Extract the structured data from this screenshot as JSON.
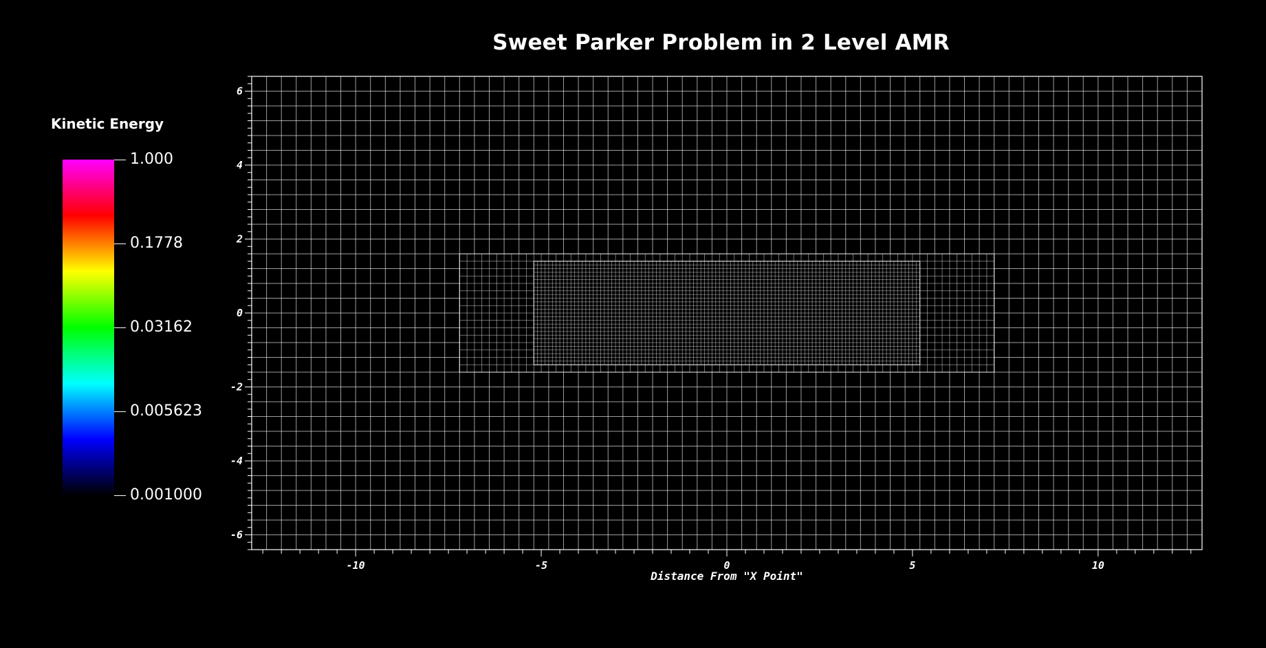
{
  "chart_data": {
    "type": "mesh",
    "title": "Sweet Parker Problem in 2 Level AMR",
    "xlabel": "Distance From \"X Point\"",
    "ylabel": "",
    "xlim": [
      -12.8,
      12.8
    ],
    "ylim": [
      -6.4,
      6.4
    ],
    "x_ticks": [
      -10,
      -5,
      0,
      5,
      10
    ],
    "y_ticks": [
      -6,
      -4,
      -2,
      0,
      2,
      4,
      6
    ],
    "x_tick_labels": [
      "-10",
      "-5",
      "0",
      "5",
      "10"
    ],
    "y_tick_labels": [
      "-6",
      "-4",
      "-2",
      "0",
      "2",
      "4",
      "6"
    ],
    "mesh_levels": [
      {
        "level": 0,
        "x_range": [
          -12.8,
          12.8
        ],
        "y_range": [
          -6.4,
          6.4
        ],
        "cell_size": 0.4
      },
      {
        "level": 1,
        "x_range": [
          -7.2,
          7.2
        ],
        "y_range": [
          -1.6,
          1.6
        ],
        "cell_size": 0.2
      },
      {
        "level": 2,
        "x_range": [
          -5.2,
          5.2
        ],
        "y_range": [
          -1.4,
          1.4
        ],
        "cell_size": 0.1
      }
    ],
    "colorbar": {
      "title": "Kinetic Energy",
      "scale": "log",
      "range": [
        0.001,
        1.0
      ],
      "tick_values": [
        1.0,
        0.1778,
        0.03162,
        0.005623,
        0.001
      ],
      "tick_labels": [
        "1.000",
        "0.1778",
        "0.03162",
        "0.005623",
        "0.001000"
      ],
      "colors": [
        "#000000",
        "#0000ff",
        "#00ffff",
        "#00ff00",
        "#ffff00",
        "#ff0000",
        "#ff00ff"
      ]
    },
    "colors": {
      "background": "#000000",
      "grid": "#ffffff",
      "text": "#ffffff"
    }
  }
}
